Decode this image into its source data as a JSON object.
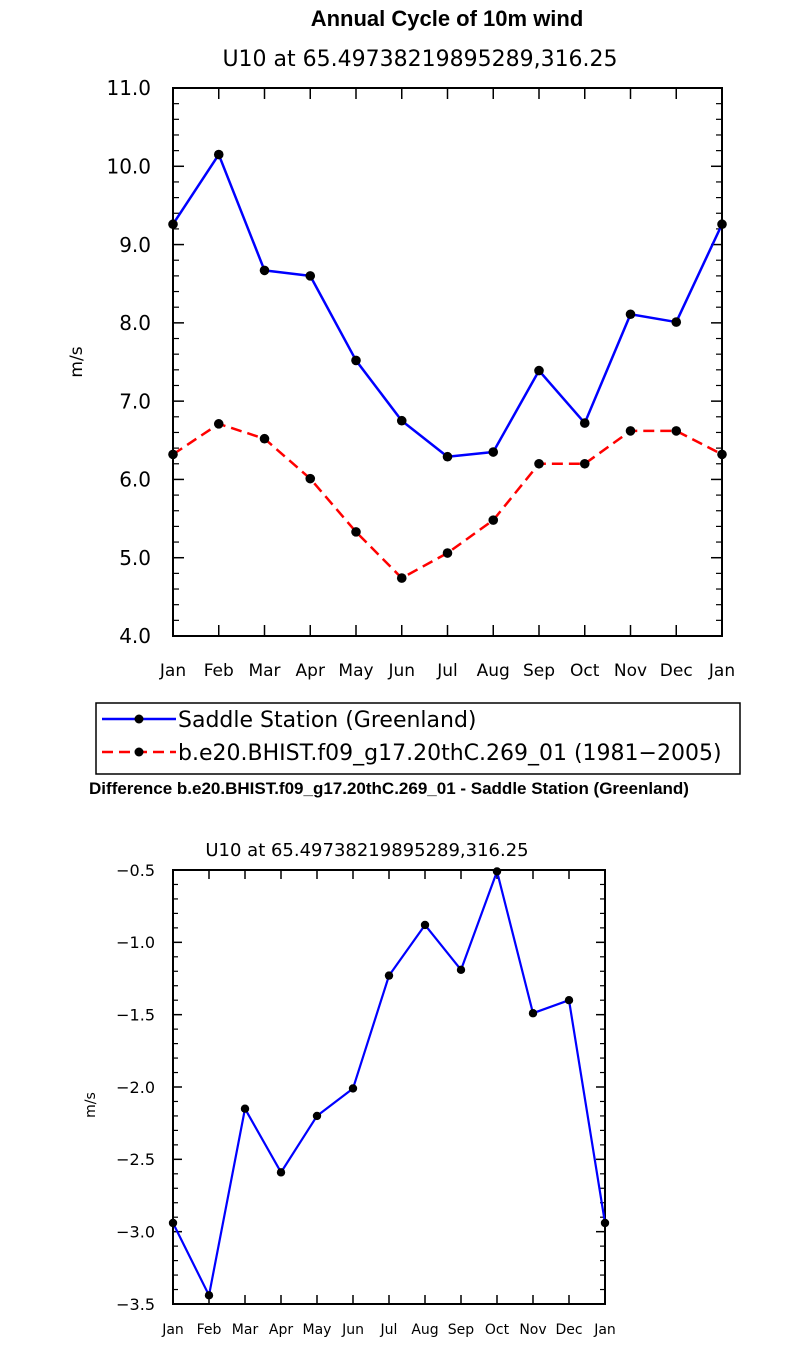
{
  "chart_data": [
    {
      "type": "line",
      "title": "Annual Cycle of 10m wind",
      "subtitle": "U10 at 65.49738219895289,316.25",
      "ylabel": "m/s",
      "xlabel": "",
      "ylim": [
        4.0,
        11.0
      ],
      "yticks": [
        "4.0",
        "5.0",
        "6.0",
        "7.0",
        "8.0",
        "9.0",
        "10.0",
        "11.0"
      ],
      "categories": [
        "Jan",
        "Feb",
        "Mar",
        "Apr",
        "May",
        "Jun",
        "Jul",
        "Aug",
        "Sep",
        "Oct",
        "Nov",
        "Dec",
        "Jan"
      ],
      "legend_position": "bottom",
      "series": [
        {
          "name": "Saddle Station (Greenland)",
          "color": "#0000ff",
          "dash": "solid",
          "values": [
            9.26,
            10.15,
            8.67,
            8.6,
            7.52,
            6.75,
            6.29,
            6.35,
            7.39,
            6.72,
            8.11,
            8.01,
            9.26
          ]
        },
        {
          "name": "b.e20.BHIST.f09_g17.20thC.269_01 (1981−2005)",
          "color": "#ff0000",
          "dash": "dashed",
          "values": [
            6.32,
            6.71,
            6.52,
            6.01,
            5.33,
            4.74,
            5.06,
            5.48,
            6.2,
            6.2,
            6.62,
            6.62,
            6.32
          ]
        }
      ]
    },
    {
      "type": "line",
      "title": "Difference b.e20.BHIST.f09_g17.20thC.269_01 - Saddle Station (Greenland)",
      "subtitle": "U10 at 65.49738219895289,316.25",
      "ylabel": "m/s",
      "xlabel": "",
      "ylim": [
        -3.5,
        -0.5
      ],
      "yticks": [
        "−3.5",
        "−3.0",
        "−2.5",
        "−2.0",
        "−1.5",
        "−1.0",
        "−0.5"
      ],
      "categories": [
        "Jan",
        "Feb",
        "Mar",
        "Apr",
        "May",
        "Jun",
        "Jul",
        "Aug",
        "Sep",
        "Oct",
        "Nov",
        "Dec",
        "Jan"
      ],
      "series": [
        {
          "color": "#0000ff",
          "dash": "solid",
          "values": [
            -2.94,
            -3.44,
            -2.15,
            -2.59,
            -2.2,
            -2.01,
            -1.23,
            -0.88,
            -1.19,
            -0.51,
            -1.49,
            -1.4,
            -2.94
          ]
        }
      ]
    }
  ]
}
